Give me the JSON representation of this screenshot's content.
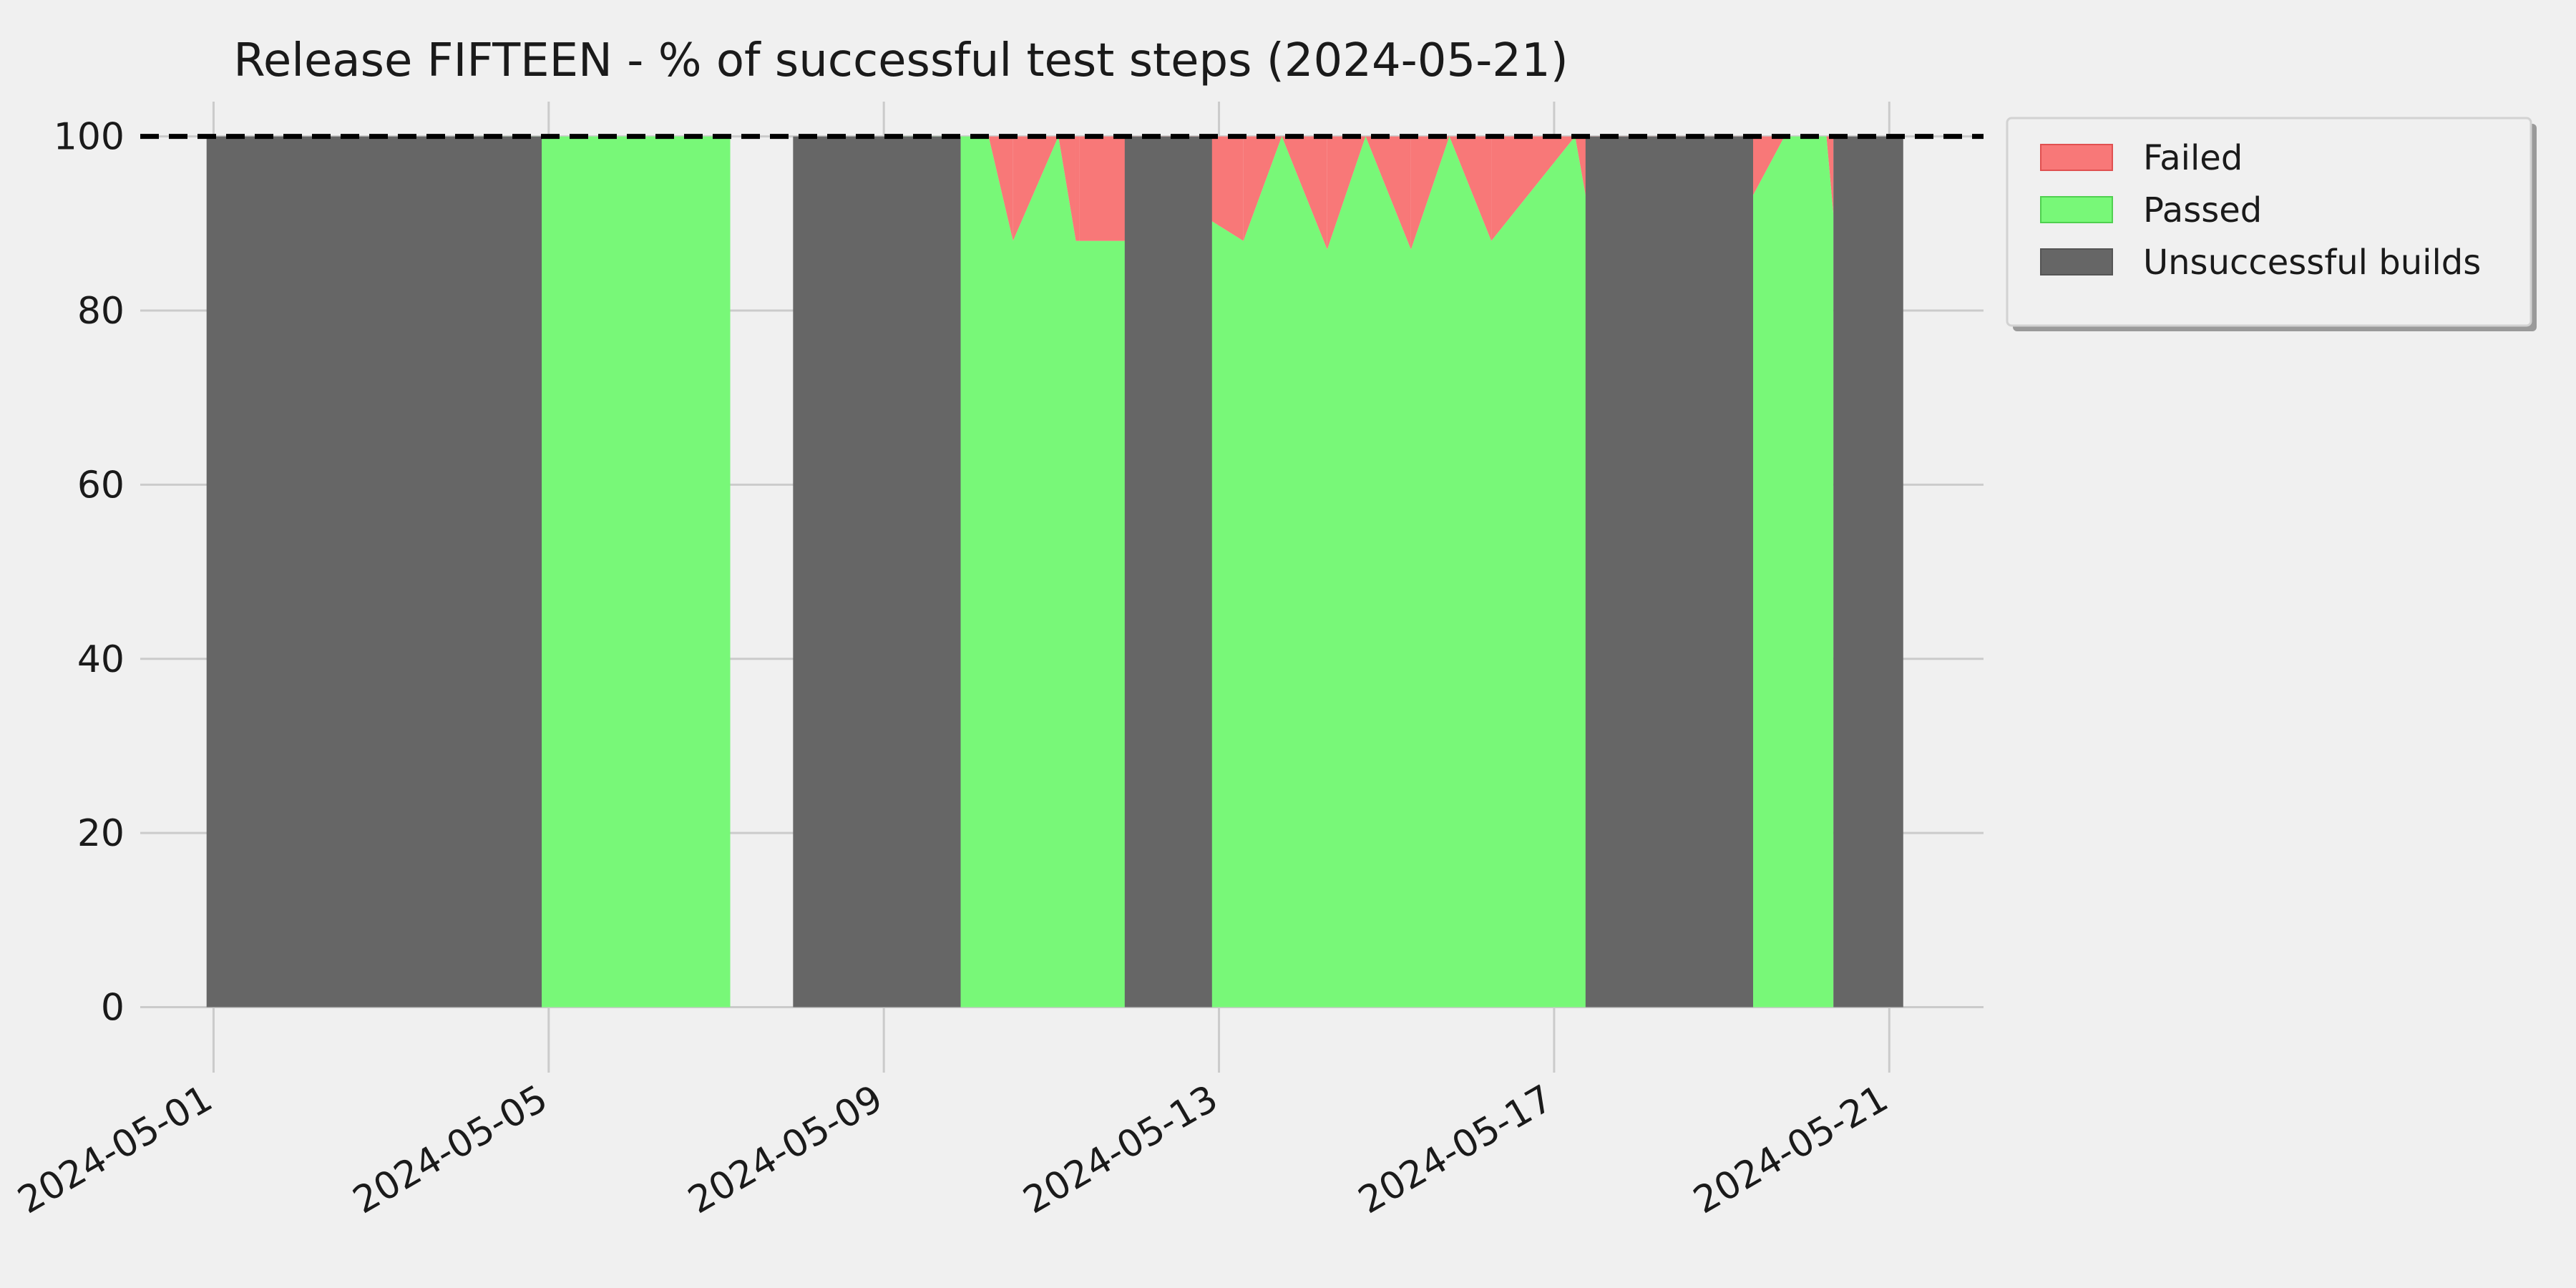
{
  "chart_data": {
    "type": "area",
    "title": "Release FIFTEEN - % of successful test steps (2024-05-21)",
    "xlabel": "",
    "ylabel": "",
    "x_axis": "date",
    "xlim": [
      "2024-04-30T03:00",
      "2024-05-22T03:00"
    ],
    "ylim": [
      -3,
      104
    ],
    "yticks": [
      0,
      20,
      40,
      60,
      80,
      100
    ],
    "xticks": [
      "2024-05-01",
      "2024-05-05",
      "2024-05-09",
      "2024-05-13",
      "2024-05-17",
      "2024-05-21"
    ],
    "reference_line": {
      "y": 100,
      "style": "dashed",
      "color": "#000000"
    },
    "grid": true,
    "legend": {
      "position": "outside-right-top"
    },
    "series": [
      {
        "name": "Failed",
        "kind": "area",
        "color": "#f87878",
        "points": [
          [
            "2024-05-10T06:00",
            100
          ],
          [
            "2024-05-10T13:00",
            100
          ],
          [
            "2024-05-11T02:00",
            100
          ],
          [
            "2024-05-11T07:00",
            100
          ],
          [
            "2024-05-11T08:00",
            100
          ],
          [
            "2024-05-12T07:00",
            100
          ],
          [
            "2024-05-12T19:00",
            100
          ],
          [
            "2024-05-13T07:00",
            100
          ],
          [
            "2024-05-13T18:00",
            100
          ],
          [
            "2024-05-14T07:00",
            100
          ],
          [
            "2024-05-14T18:00",
            100
          ],
          [
            "2024-05-15T07:00",
            100
          ],
          [
            "2024-05-15T18:00",
            100
          ],
          [
            "2024-05-16T06:00",
            100
          ],
          [
            "2024-05-17T06:00",
            100
          ],
          [
            "2024-05-17T10:00",
            100
          ],
          [
            "2024-05-19T06:00",
            100
          ],
          [
            "2024-05-19T18:00",
            100
          ],
          [
            "2024-05-20T06:00",
            100
          ],
          [
            "2024-05-20T08:00",
            100
          ]
        ]
      },
      {
        "name": "Passed",
        "kind": "area",
        "color": "#78f878",
        "points": [
          [
            "2024-05-04T04:00",
            100
          ],
          [
            "2024-05-07T04:00",
            100
          ],
          [
            "2024-05-09T04:00",
            100
          ],
          [
            "2024-05-10T06:00",
            100
          ],
          [
            "2024-05-10T13:00",
            88
          ],
          [
            "2024-05-11T02:00",
            100
          ],
          [
            "2024-05-11T07:00",
            88
          ],
          [
            "2024-05-11T08:00",
            88
          ],
          [
            "2024-05-12T07:00",
            88
          ],
          [
            "2024-05-12T19:00",
            91
          ],
          [
            "2024-05-13T07:00",
            88
          ],
          [
            "2024-05-13T18:00",
            100
          ],
          [
            "2024-05-14T07:00",
            87
          ],
          [
            "2024-05-14T18:00",
            100
          ],
          [
            "2024-05-15T07:00",
            87
          ],
          [
            "2024-05-15T18:00",
            100
          ],
          [
            "2024-05-16T06:00",
            88
          ],
          [
            "2024-05-17T06:00",
            100
          ],
          [
            "2024-05-17T10:00",
            91
          ],
          [
            "2024-05-19T06:00",
            91
          ],
          [
            "2024-05-19T18:00",
            100
          ],
          [
            "2024-05-20T06:00",
            100
          ],
          [
            "2024-05-20T08:00",
            91
          ]
        ],
        "blocks": [
          [
            "2024-05-04T04:00",
            "2024-05-07T04:00"
          ]
        ]
      },
      {
        "name": "Unsuccessful builds",
        "kind": "blocks",
        "color": "#666666",
        "blocks": [
          [
            "2024-04-30T22:00",
            "2024-05-04T22:00"
          ],
          [
            "2024-05-07T22:00",
            "2024-05-09T22:00"
          ],
          [
            "2024-05-11T21:00",
            "2024-05-12T22:00"
          ],
          [
            "2024-05-17T09:00",
            "2024-05-19T09:00"
          ],
          [
            "2024-05-20T08:00",
            "2024-05-21T04:00"
          ]
        ]
      }
    ]
  }
}
